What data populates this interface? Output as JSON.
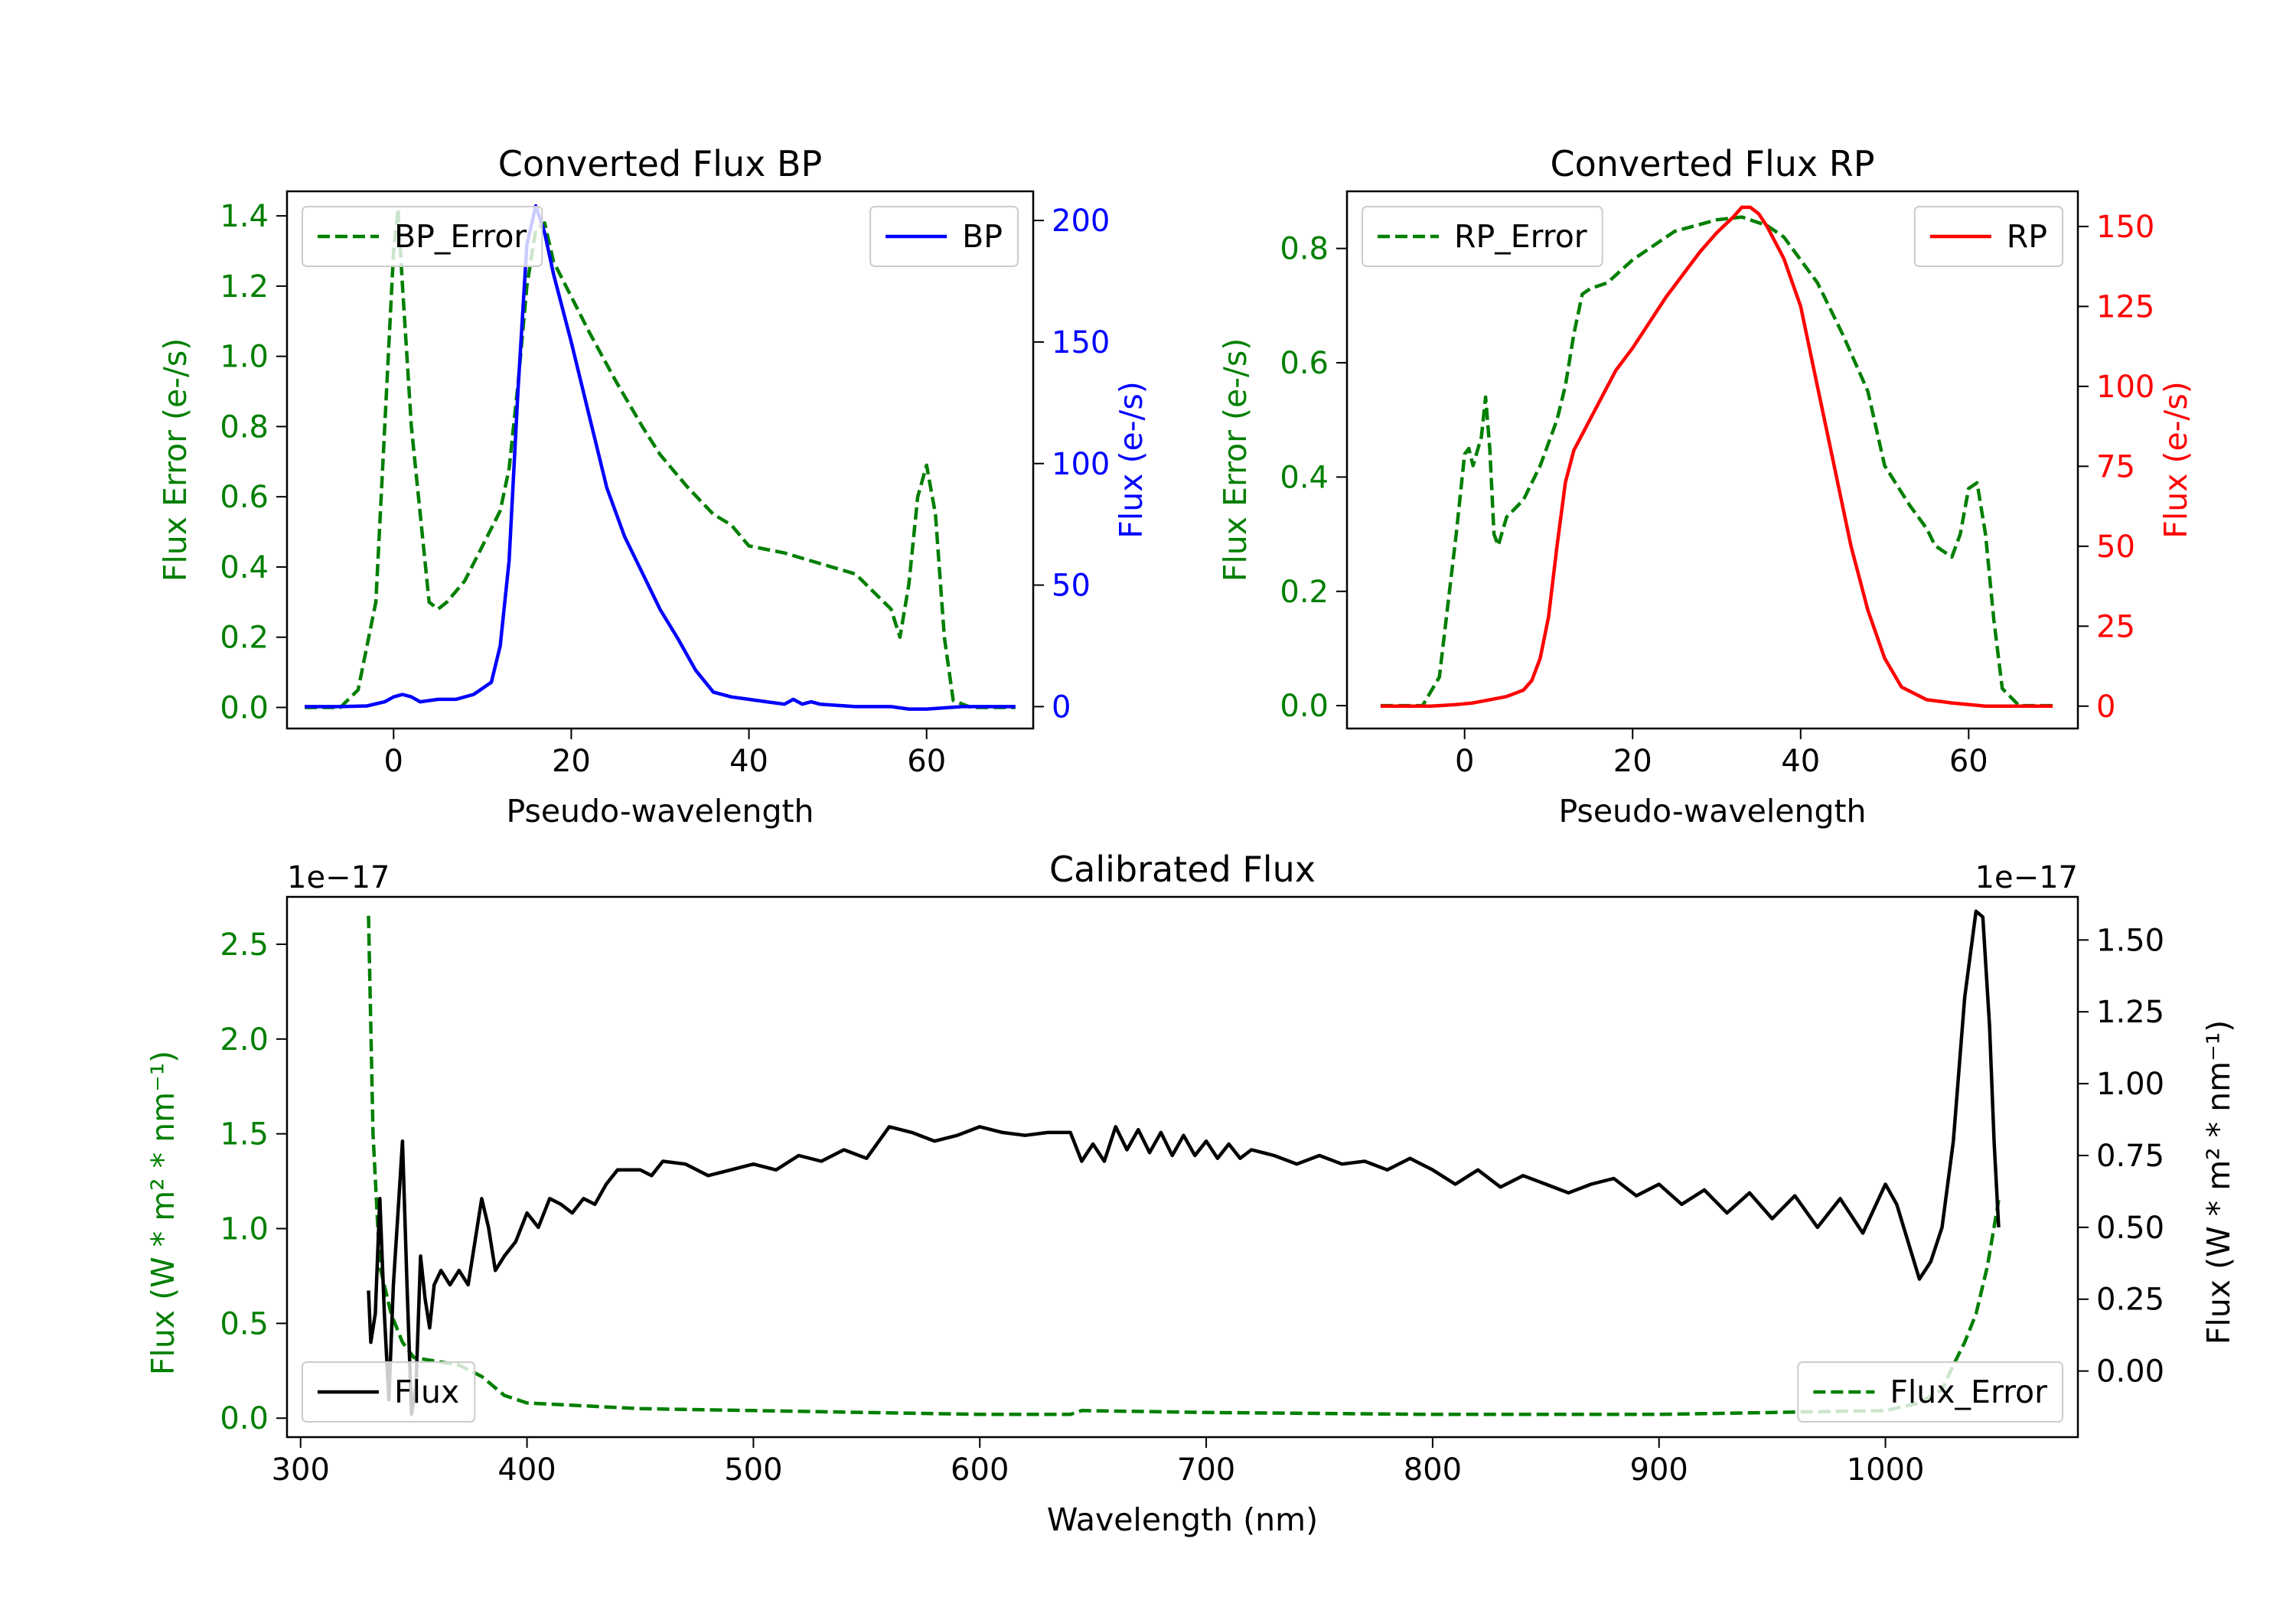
{
  "colors": {
    "green": "#007f00",
    "blue": "#0000ff",
    "red": "#ff0000",
    "black": "#000000"
  },
  "chart_data": [
    {
      "id": "bp",
      "type": "line",
      "title": "Converted Flux BP",
      "xlabel": "Pseudo-wavelength",
      "ylabel_left": "Flux Error (e-/s)",
      "ylabel_right": "Flux (e-/s)",
      "xlim": [
        -12,
        72
      ],
      "ylim_left": [
        -0.06,
        1.47
      ],
      "ylim_right": [
        -9,
        212
      ],
      "xticks": [
        0,
        20,
        40,
        60
      ],
      "xtick_labels": [
        "0",
        "20",
        "40",
        "60"
      ],
      "yticks_left": [
        0,
        0.2,
        0.4,
        0.6,
        0.8,
        1.0,
        1.2,
        1.4
      ],
      "ytick_labels_left": [
        "0.0",
        "0.2",
        "0.4",
        "0.6",
        "0.8",
        "1.0",
        "1.2",
        "1.4"
      ],
      "yticks_right": [
        0,
        50,
        100,
        150,
        200
      ],
      "ytick_labels_right": [
        "0",
        "50",
        "100",
        "150",
        "200"
      ],
      "legend_left": {
        "label": "BP_Error",
        "style": "dashed",
        "color": "green",
        "position": "top-left"
      },
      "legend_right": {
        "label": "BP",
        "style": "solid",
        "color": "blue",
        "position": "top-right"
      },
      "series": [
        {
          "name": "BP_Error",
          "axis": "left",
          "style": "dashed",
          "color": "green",
          "x": [
            -10,
            -6,
            -4,
            -2,
            -1,
            0,
            0.5,
            1,
            2,
            3,
            4,
            5,
            6,
            8,
            10,
            12,
            13,
            14,
            15,
            16,
            17,
            18,
            20,
            22,
            25,
            28,
            30,
            33,
            36,
            38,
            40,
            44,
            48,
            52,
            54,
            56,
            57,
            58,
            59,
            60,
            61,
            62,
            63,
            65,
            68,
            70
          ],
          "y": [
            0,
            0,
            0.05,
            0.3,
            0.8,
            1.3,
            1.42,
            1.2,
            0.8,
            0.55,
            0.3,
            0.28,
            0.3,
            0.36,
            0.46,
            0.56,
            0.68,
            0.92,
            1.2,
            1.36,
            1.38,
            1.27,
            1.17,
            1.07,
            0.93,
            0.8,
            0.72,
            0.63,
            0.55,
            0.52,
            0.46,
            0.44,
            0.41,
            0.38,
            0.33,
            0.28,
            0.2,
            0.35,
            0.6,
            0.69,
            0.55,
            0.2,
            0.02,
            0,
            0,
            0
          ]
        },
        {
          "name": "BP",
          "axis": "right",
          "style": "solid",
          "color": "blue",
          "x": [
            -10,
            -6,
            -3,
            -1,
            0,
            1,
            2,
            3,
            5,
            7,
            9,
            11,
            12,
            13,
            14,
            15,
            16,
            17,
            18,
            20,
            22,
            24,
            26,
            28,
            30,
            32,
            34,
            36,
            38,
            40,
            42,
            44,
            45,
            46,
            47,
            48,
            52,
            56,
            58,
            60,
            64,
            70
          ],
          "y": [
            0,
            0,
            0.3,
            2,
            4,
            5,
            4,
            2,
            3,
            3,
            5,
            10,
            25,
            60,
            130,
            190,
            206,
            195,
            178,
            150,
            120,
            90,
            70,
            55,
            40,
            28,
            15,
            6,
            4,
            3,
            2,
            1,
            3,
            1,
            2,
            1,
            0,
            0,
            -1,
            -1,
            0,
            0
          ]
        }
      ]
    },
    {
      "id": "rp",
      "type": "line",
      "title": "Converted Flux RP",
      "xlabel": "Pseudo-wavelength",
      "ylabel_left": "Flux Error (e-/s)",
      "ylabel_right": "Flux (e-/s)",
      "xlim": [
        -14,
        73
      ],
      "ylim_left": [
        -0.04,
        0.9
      ],
      "ylim_right": [
        -7,
        161
      ],
      "xticks": [
        0,
        20,
        40,
        60
      ],
      "xtick_labels": [
        "0",
        "20",
        "40",
        "60"
      ],
      "yticks_left": [
        0,
        0.2,
        0.4,
        0.6,
        0.8
      ],
      "ytick_labels_left": [
        "0.0",
        "0.2",
        "0.4",
        "0.6",
        "0.8"
      ],
      "yticks_right": [
        0,
        25,
        50,
        75,
        100,
        125,
        150
      ],
      "ytick_labels_right": [
        "0",
        "25",
        "50",
        "75",
        "100",
        "125",
        "150"
      ],
      "legend_left": {
        "label": "RP_Error",
        "style": "dashed",
        "color": "green",
        "position": "top-left"
      },
      "legend_right": {
        "label": "RP",
        "style": "solid",
        "color": "red",
        "position": "top-right"
      },
      "series": [
        {
          "name": "RP_Error",
          "axis": "left",
          "style": "dashed",
          "color": "green",
          "x": [
            -10,
            -5,
            -3,
            -1,
            0,
            0.5,
            1,
            2,
            2.5,
            3,
            3.5,
            4,
            5,
            7,
            9,
            11,
            12,
            13,
            14,
            15,
            17,
            20,
            25,
            30,
            33,
            36,
            38,
            42,
            45,
            48,
            50,
            53,
            55,
            56,
            57,
            58,
            59,
            60,
            61,
            62,
            63,
            64,
            66,
            70
          ],
          "y": [
            0,
            0,
            0.05,
            0.3,
            0.44,
            0.45,
            0.42,
            0.47,
            0.54,
            0.45,
            0.3,
            0.28,
            0.33,
            0.36,
            0.42,
            0.5,
            0.56,
            0.65,
            0.72,
            0.73,
            0.74,
            0.78,
            0.83,
            0.85,
            0.855,
            0.84,
            0.82,
            0.74,
            0.65,
            0.55,
            0.42,
            0.35,
            0.31,
            0.28,
            0.27,
            0.26,
            0.3,
            0.38,
            0.39,
            0.3,
            0.15,
            0.03,
            0,
            0
          ]
        },
        {
          "name": "RP",
          "axis": "right",
          "style": "solid",
          "color": "red",
          "x": [
            -10,
            -4,
            -1,
            1,
            3,
            5,
            7,
            8,
            9,
            10,
            11,
            12,
            13,
            14,
            16,
            18,
            20,
            22,
            24,
            26,
            28,
            30,
            32,
            33,
            34,
            35,
            36,
            38,
            40,
            42,
            44,
            46,
            48,
            50,
            52,
            55,
            58,
            62,
            66,
            70
          ],
          "y": [
            0,
            0,
            0.5,
            1,
            2,
            3,
            5,
            8,
            15,
            28,
            50,
            70,
            80,
            85,
            95,
            105,
            112,
            120,
            128,
            135,
            142,
            148,
            153,
            156,
            156,
            154,
            150,
            140,
            125,
            100,
            75,
            50,
            30,
            15,
            6,
            2,
            1,
            0,
            0,
            0
          ]
        }
      ]
    },
    {
      "id": "calibrated",
      "type": "line",
      "title": "Calibrated Flux",
      "xlabel": "Wavelength (nm)",
      "ylabel_left": "Flux (W * m² * nm⁻¹)",
      "ylabel_right": "Flux (W * m² * nm⁻¹)",
      "offset_left": "1e−17",
      "offset_right": "1e−17",
      "xlim": [
        294,
        1085
      ],
      "ylim_left": [
        -0.1,
        2.75
      ],
      "ylim_right": [
        -0.23,
        1.65
      ],
      "xticks": [
        300,
        400,
        500,
        600,
        700,
        800,
        900,
        1000
      ],
      "xtick_labels": [
        "300",
        "400",
        "500",
        "600",
        "700",
        "800",
        "900",
        "1000"
      ],
      "yticks_left": [
        0,
        0.5,
        1.0,
        1.5,
        2.0,
        2.5
      ],
      "ytick_labels_left": [
        "0.0",
        "0.5",
        "1.0",
        "1.5",
        "2.0",
        "2.5"
      ],
      "yticks_right": [
        0,
        0.25,
        0.5,
        0.75,
        1.0,
        1.25,
        1.5
      ],
      "ytick_labels_right": [
        "0.00",
        "0.25",
        "0.50",
        "0.75",
        "1.00",
        "1.25",
        "1.50"
      ],
      "legend_left": {
        "label": "Flux",
        "style": "solid",
        "color": "black",
        "position": "bottom-left"
      },
      "legend_right": {
        "label": "Flux_Error",
        "style": "dashed",
        "color": "green",
        "position": "bottom-right"
      },
      "series": [
        {
          "name": "Flux_Error",
          "axis": "left",
          "style": "dashed",
          "color": "green",
          "x": [
            330,
            332,
            335,
            340,
            345,
            350,
            360,
            370,
            380,
            390,
            400,
            450,
            500,
            550,
            600,
            640,
            645,
            700,
            800,
            900,
            1000,
            1015,
            1025,
            1030,
            1035,
            1040,
            1045,
            1050
          ],
          "y": [
            2.65,
            1.5,
            0.8,
            0.55,
            0.4,
            0.32,
            0.3,
            0.28,
            0.22,
            0.12,
            0.08,
            0.05,
            0.04,
            0.03,
            0.02,
            0.02,
            0.04,
            0.03,
            0.02,
            0.02,
            0.04,
            0.08,
            0.15,
            0.28,
            0.4,
            0.55,
            0.8,
            1.15
          ]
        },
        {
          "name": "Flux",
          "axis": "right",
          "style": "solid",
          "color": "black",
          "x": [
            330,
            331,
            333,
            335,
            337,
            339,
            341,
            343,
            345,
            347,
            349,
            351,
            353,
            355,
            357,
            359,
            362,
            366,
            370,
            374,
            378,
            380,
            383,
            386,
            390,
            395,
            400,
            405,
            410,
            415,
            420,
            425,
            430,
            435,
            440,
            445,
            450,
            455,
            460,
            470,
            480,
            490,
            500,
            510,
            520,
            530,
            540,
            550,
            560,
            570,
            580,
            590,
            600,
            610,
            620,
            630,
            640,
            645,
            650,
            655,
            660,
            665,
            670,
            675,
            680,
            685,
            690,
            695,
            700,
            705,
            710,
            715,
            720,
            730,
            740,
            750,
            760,
            770,
            780,
            790,
            800,
            810,
            820,
            830,
            840,
            850,
            860,
            870,
            880,
            890,
            900,
            910,
            920,
            930,
            940,
            950,
            960,
            970,
            980,
            990,
            1000,
            1005,
            1010,
            1015,
            1020,
            1025,
            1030,
            1035,
            1040,
            1043,
            1046,
            1048,
            1050
          ],
          "y": [
            0.28,
            0.1,
            0.2,
            0.6,
            0.2,
            -0.1,
            0.3,
            0.55,
            0.8,
            0.3,
            -0.15,
            -0.05,
            0.4,
            0.25,
            0.15,
            0.3,
            0.35,
            0.3,
            0.35,
            0.3,
            0.5,
            0.6,
            0.5,
            0.35,
            0.4,
            0.45,
            0.55,
            0.5,
            0.6,
            0.58,
            0.55,
            0.6,
            0.58,
            0.65,
            0.7,
            0.7,
            0.7,
            0.68,
            0.73,
            0.72,
            0.68,
            0.7,
            0.72,
            0.7,
            0.75,
            0.73,
            0.77,
            0.74,
            0.85,
            0.83,
            0.8,
            0.82,
            0.85,
            0.83,
            0.82,
            0.83,
            0.83,
            0.73,
            0.79,
            0.73,
            0.85,
            0.77,
            0.84,
            0.76,
            0.83,
            0.75,
            0.82,
            0.75,
            0.8,
            0.74,
            0.79,
            0.74,
            0.77,
            0.75,
            0.72,
            0.75,
            0.72,
            0.73,
            0.7,
            0.74,
            0.7,
            0.65,
            0.7,
            0.64,
            0.68,
            0.65,
            0.62,
            0.65,
            0.67,
            0.61,
            0.65,
            0.58,
            0.63,
            0.55,
            0.62,
            0.53,
            0.61,
            0.5,
            0.6,
            0.48,
            0.65,
            0.58,
            0.45,
            0.32,
            0.38,
            0.5,
            0.8,
            1.3,
            1.6,
            1.58,
            1.2,
            0.8,
            0.5
          ]
        }
      ]
    }
  ]
}
